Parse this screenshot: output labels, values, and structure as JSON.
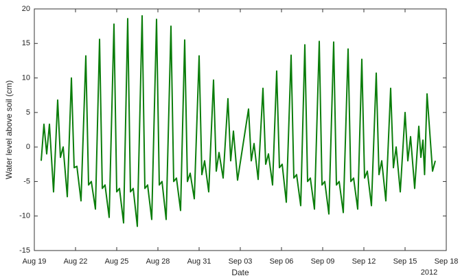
{
  "chart_data": {
    "type": "line",
    "x_label": "Date",
    "y_label": "Water level above soil (cm)",
    "year_label": "2012",
    "color": "#0a7d0a",
    "xlim": [
      0,
      30
    ],
    "ylim": [
      -15,
      20
    ],
    "xticks": [
      {
        "value": 0,
        "label": "Aug 19"
      },
      {
        "value": 3,
        "label": "Aug 22"
      },
      {
        "value": 6,
        "label": "Aug 25"
      },
      {
        "value": 9,
        "label": "Aug 28"
      },
      {
        "value": 12,
        "label": "Aug 31"
      },
      {
        "value": 15,
        "label": "Sep 03"
      },
      {
        "value": 18,
        "label": "Sep 06"
      },
      {
        "value": 21,
        "label": "Sep 09"
      },
      {
        "value": 24,
        "label": "Sep 12"
      },
      {
        "value": 27,
        "label": "Sep 15"
      },
      {
        "value": 30,
        "label": "Sep 18"
      }
    ],
    "yticks": [
      -15,
      -10,
      -5,
      0,
      5,
      10,
      15,
      20
    ],
    "x": [
      0.5,
      0.7,
      0.9,
      1.1,
      1.4,
      1.7,
      1.9,
      2.1,
      2.4,
      2.7,
      2.9,
      3.1,
      3.4,
      3.75,
      3.95,
      4.15,
      4.45,
      4.75,
      4.95,
      5.15,
      5.45,
      5.8,
      6.0,
      6.2,
      6.5,
      6.8,
      7.0,
      7.2,
      7.5,
      7.85,
      8.05,
      8.25,
      8.55,
      8.9,
      9.1,
      9.3,
      9.6,
      9.95,
      10.15,
      10.35,
      10.65,
      10.95,
      11.15,
      11.35,
      11.65,
      12,
      12.2,
      12.4,
      12.7,
      13.05,
      13.25,
      13.45,
      13.75,
      14.1,
      14.3,
      14.5,
      14.8,
      15.6,
      15.8,
      16.0,
      16.3,
      16.65,
      16.85,
      17.05,
      17.35,
      17.65,
      17.85,
      18.05,
      18.35,
      18.7,
      18.9,
      19.1,
      19.4,
      19.7,
      19.9,
      20.1,
      20.4,
      20.75,
      20.95,
      21.15,
      21.45,
      21.8,
      22.0,
      22.2,
      22.5,
      22.85,
      23.05,
      23.25,
      23.55,
      23.85,
      24.05,
      24.25,
      24.55,
      24.9,
      25.1,
      25.3,
      25.6,
      25.95,
      26.15,
      26.35,
      26.65,
      27,
      27.2,
      27.4,
      27.7,
      28,
      28.15,
      28.3,
      28.42,
      28.6,
      29,
      29.2
    ],
    "values": [
      -2,
      3.3,
      -1,
      3.3,
      -6.5,
      6.8,
      -1.5,
      0,
      -7.2,
      10,
      -3,
      -2.8,
      -7.8,
      13.2,
      -5.5,
      -5,
      -9,
      15.6,
      -6,
      -5.5,
      -10.2,
      17.8,
      -6.5,
      -6,
      -11,
      18.6,
      -6.5,
      -6,
      -11.5,
      19,
      -6,
      -5.5,
      -10.5,
      18.5,
      -5.5,
      -5,
      -10.5,
      17.5,
      -5,
      -4.5,
      -9.2,
      15.5,
      -5,
      -3.8,
      -7.5,
      13.2,
      -4,
      -2,
      -6.5,
      9.7,
      -3.5,
      -0.8,
      -4.5,
      7,
      -2,
      2.3,
      -4.8,
      5.5,
      -2,
      0.5,
      -4.7,
      8.5,
      -2.5,
      -1,
      -5.5,
      11,
      -3,
      -2.5,
      -8,
      13.3,
      -4.5,
      -4,
      -8.5,
      14.8,
      -5,
      -4.5,
      -9,
      15.3,
      -5.5,
      -5,
      -9.7,
      15.2,
      -5.5,
      -5,
      -9.5,
      14.2,
      -5,
      -4.5,
      -9,
      12.7,
      -4.5,
      -3.5,
      -8.5,
      10.7,
      -4,
      -2,
      -7.8,
      8.5,
      -3,
      0,
      -6.5,
      5,
      -2,
      1.5,
      -6,
      3,
      -1.5,
      1,
      -4,
      7.7,
      -3.5,
      -2
    ]
  }
}
